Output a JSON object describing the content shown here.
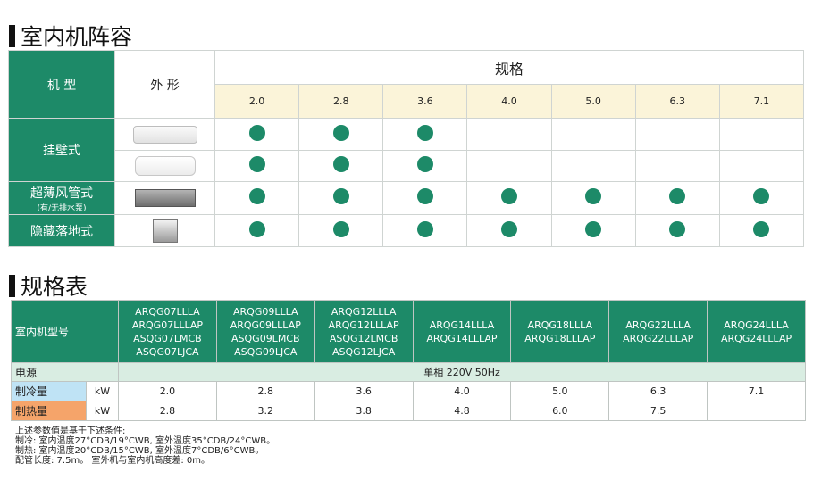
{
  "section1": {
    "title": "室内机阵容"
  },
  "lineup": {
    "model_header": "机 型",
    "shape_header": "外 形",
    "spec_header": "规格",
    "sizes": [
      "2.0",
      "2.8",
      "3.6",
      "4.0",
      "5.0",
      "6.3",
      "7.1"
    ],
    "rows": [
      {
        "label": "挂壁式",
        "sublabel": "",
        "icons": [
          "wall-unit-slim-icon",
          "wall-unit-icon"
        ],
        "marks": [
          [
            1,
            1,
            1,
            0,
            0,
            0,
            0
          ],
          [
            1,
            1,
            1,
            0,
            0,
            0,
            0
          ]
        ]
      },
      {
        "label": "超薄风管式",
        "sublabel": "(有/无排水泵)",
        "icons": [
          "ducted-unit-icon"
        ],
        "marks": [
          [
            1,
            1,
            1,
            1,
            1,
            1,
            1
          ]
        ]
      },
      {
        "label": "隐藏落地式",
        "sublabel": "",
        "icons": [
          "floor-unit-icon"
        ],
        "marks": [
          [
            1,
            1,
            1,
            1,
            1,
            1,
            1
          ]
        ]
      }
    ],
    "colors": {
      "header_green": "#1d8a68",
      "size_row": "#fbf4d9",
      "dot": "#1d8a68"
    }
  },
  "section2": {
    "title": "规格表"
  },
  "spec": {
    "model_label": "室内机型号",
    "models": [
      [
        "ARQG07LLLA",
        "ARQG07LLLAP",
        "ASQG07LMCB",
        "ASQG07LJCA"
      ],
      [
        "ARQG09LLLA",
        "ARQG09LLLAP",
        "ASQG09LMCB",
        "ASQG09LJCA"
      ],
      [
        "ARQG12LLLA",
        "ARQG12LLLAP",
        "ASQG12LMCB",
        "ASQG12LJCA"
      ],
      [
        "ARQG14LLLA",
        "ARQG14LLLAP"
      ],
      [
        "ARQG18LLLA",
        "ARQG18LLLAP"
      ],
      [
        "ARQG22LLLA",
        "ARQG22LLLAP"
      ],
      [
        "ARQG24LLLA",
        "ARQG24LLLAP"
      ]
    ],
    "power_label": "电源",
    "power_value": "单相 220V 50Hz",
    "cooling_label": "制冷量",
    "cooling_unit": "kW",
    "cooling_values": [
      "2.0",
      "2.8",
      "3.6",
      "4.0",
      "5.0",
      "6.3",
      "7.1"
    ],
    "heating_label": "制热量",
    "heating_unit": "kW",
    "heating_values": [
      "2.8",
      "3.2",
      "3.8",
      "4.8",
      "6.0",
      "7.5",
      ""
    ],
    "colors": {
      "cooling": "#bfe3f5",
      "heating": "#f5a46a",
      "power_row": "#d9ede2"
    }
  },
  "notes": [
    "上述参数值是基于下述条件:",
    "制冷: 室内温度27°CDB/19°CWB, 室外温度35°CDB/24°CWB。",
    "制热: 室内温度20°CDB/15°CWB, 室外温度7°CDB/6°CWB。",
    "配管长度: 7.5m。  室外机与室内机高度差: 0m。"
  ]
}
